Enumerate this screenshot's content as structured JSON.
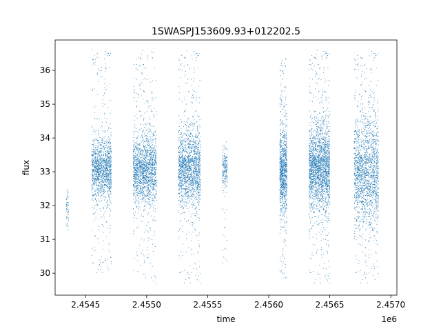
{
  "chart_data": {
    "type": "scatter",
    "title": "1SWASPJ153609.93+012202.5",
    "xlabel": "time",
    "ylabel": "flux",
    "x_offset_label": "1e6",
    "xlim": [
      2.45425,
      2.45705
    ],
    "ylim": [
      29.35,
      36.9
    ],
    "xticks": [
      2.4545,
      2.455,
      2.4555,
      2.456,
      2.4565,
      2.457
    ],
    "xtick_labels": [
      "2.4545",
      "2.4550",
      "2.4555",
      "2.4560",
      "2.4565",
      "2.4570"
    ],
    "yticks": [
      30,
      31,
      32,
      33,
      34,
      35,
      36
    ],
    "ytick_labels": [
      "30",
      "31",
      "32",
      "33",
      "34",
      "35",
      "36"
    ],
    "grid": false,
    "legend": false,
    "marker_color": "#1f77b4",
    "series": [
      {
        "clusters": [
          {
            "x_min": 2.45434,
            "x_max": 2.45436,
            "y_center": 32.0,
            "y_core_sd": 0.35,
            "y_min": 31.1,
            "y_max": 32.5,
            "points": 60
          },
          {
            "x_min": 2.45455,
            "x_max": 2.45471,
            "y_center": 33.1,
            "y_core_sd": 0.45,
            "y_min": 30.0,
            "y_max": 36.6,
            "points": 1400
          },
          {
            "x_min": 2.45489,
            "x_max": 2.45508,
            "y_center": 33.05,
            "y_core_sd": 0.5,
            "y_min": 29.7,
            "y_max": 36.6,
            "points": 1700
          },
          {
            "x_min": 2.45526,
            "x_max": 2.45544,
            "y_center": 33.1,
            "y_core_sd": 0.55,
            "y_min": 29.7,
            "y_max": 36.6,
            "points": 1700
          },
          {
            "x_min": 2.45562,
            "x_max": 2.45566,
            "y_center": 33.1,
            "y_core_sd": 0.3,
            "y_min": 29.8,
            "y_max": 33.9,
            "points": 200
          },
          {
            "x_min": 2.45609,
            "x_max": 2.45615,
            "y_center": 33.0,
            "y_core_sd": 0.6,
            "y_min": 29.7,
            "y_max": 36.4,
            "points": 1000
          },
          {
            "x_min": 2.45633,
            "x_max": 2.4565,
            "y_center": 33.1,
            "y_core_sd": 0.6,
            "y_min": 29.7,
            "y_max": 36.6,
            "points": 2200
          },
          {
            "x_min": 2.4567,
            "x_max": 2.4569,
            "y_center": 33.0,
            "y_core_sd": 0.8,
            "y_min": 29.7,
            "y_max": 36.6,
            "points": 1800
          }
        ]
      }
    ]
  }
}
